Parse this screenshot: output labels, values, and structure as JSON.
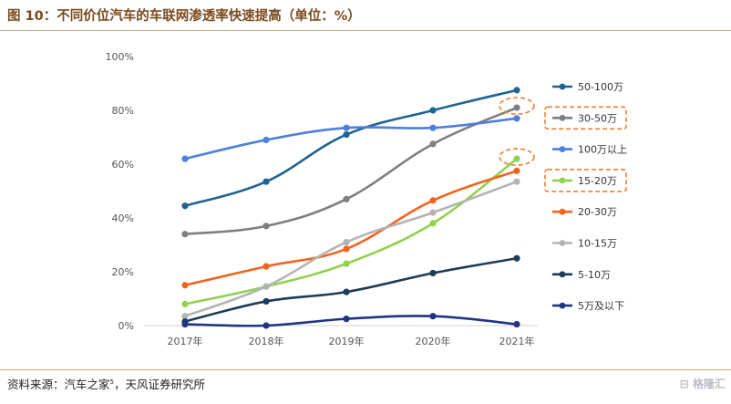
{
  "title": "图 10：不同价位汽车的车联网渗透率快速提高（单位：%）",
  "source": {
    "text": "资料来源：汽车之家",
    "sup": "5",
    "tail": "，天风证券研究所"
  },
  "watermark": "格隆汇",
  "colors": {
    "brown": "#7a4a1f",
    "highlight": "#ed7d31"
  },
  "chart_data": {
    "type": "line",
    "categories": [
      "2017年",
      "2018年",
      "2019年",
      "2020年",
      "2021年"
    ],
    "y_ticks": [
      "0%",
      "20%",
      "40%",
      "60%",
      "80%",
      "100%"
    ],
    "ylim": [
      0,
      100
    ],
    "legend_position": "right",
    "series": [
      {
        "name": "50-100万",
        "color": "#1f6391",
        "values": [
          44.5,
          53.5,
          71,
          80,
          87.5
        ]
      },
      {
        "name": "30-50万",
        "color": "#7f7f7f",
        "values": [
          34,
          37,
          47,
          67.5,
          81
        ]
      },
      {
        "name": "100万以上",
        "color": "#4d7fdc",
        "values": [
          62,
          69,
          73.5,
          73.5,
          77
        ]
      },
      {
        "name": "15-20万",
        "color": "#92d050",
        "values": [
          8,
          14.5,
          23,
          38,
          62
        ]
      },
      {
        "name": "20-30万",
        "color": "#f0651d",
        "values": [
          15,
          22,
          28.5,
          46.5,
          57.5
        ]
      },
      {
        "name": "10-15万",
        "color": "#b4b4b4",
        "values": [
          3.5,
          14.5,
          31,
          42,
          53.5
        ]
      },
      {
        "name": "5-10万",
        "color": "#1b3d58",
        "values": [
          1.5,
          9,
          12.5,
          19.5,
          25
        ]
      },
      {
        "name": "5万及以下",
        "color": "#1f3580",
        "values": [
          0.5,
          0,
          2.5,
          3.5,
          0.5
        ]
      }
    ],
    "highlighted": [
      "30-50万",
      "15-20万"
    ]
  }
}
